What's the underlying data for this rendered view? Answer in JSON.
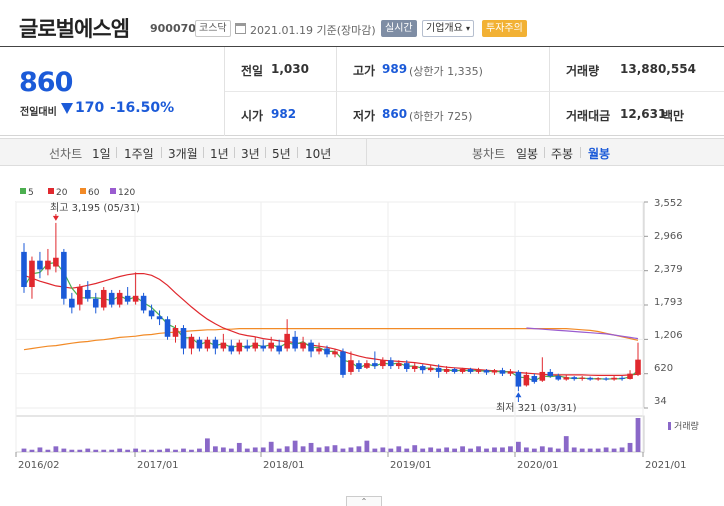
{
  "header": {
    "company_name": "글로벌에스엠",
    "code": "900070",
    "market": "코스닥",
    "as_of": "2021.01.19 기준(장마감)",
    "realtime_label": "실시간",
    "info_label": "기업개요",
    "warning_label": "투자주의",
    "calendar_icon": "calendar-icon",
    "dropdown_icon": "chevron-down-icon"
  },
  "quote": {
    "price": "860",
    "change_label": "전일대비",
    "change_amount": "170",
    "change_pct": "-16.50%",
    "direction_icon": "down-triangle-icon",
    "prev_close_label": "전일",
    "prev_close": "1,030",
    "high_label": "고가",
    "high": "989",
    "upper_limit": "(상한가 1,335)",
    "volume_label": "거래량",
    "volume": "13,880,554",
    "open_label": "시가",
    "open": "982",
    "low_label": "저가",
    "low": "860",
    "lower_limit": "(하한가 725)",
    "amount_label": "거래대금",
    "amount": "12,631",
    "amount_unit": "백만"
  },
  "tabs": {
    "line_label": "선차트",
    "periods": [
      "1일",
      "1주일",
      "3개월",
      "1년",
      "3년",
      "5년",
      "10년"
    ],
    "candle_label": "봉차트",
    "candle_periods": [
      "일봉",
      "주봉",
      "월봉"
    ],
    "active_candle": "월봉"
  },
  "colors": {
    "up": "#e0282e",
    "down": "#1b5ad8",
    "ma5": "#4caf50",
    "ma20": "#e0282e",
    "ma60": "#f28a26",
    "ma120": "#9a5cd0",
    "volume": "#8a68c8"
  },
  "chart_data": {
    "type": "candlestick",
    "title": "",
    "legend": [
      {
        "name": "5",
        "color": "#4caf50"
      },
      {
        "name": "20",
        "color": "#e0282e"
      },
      {
        "name": "60",
        "color": "#f28a26"
      },
      {
        "name": "120",
        "color": "#9a5cd0"
      }
    ],
    "y_ticks": [
      "3,552",
      "2,966",
      "2,379",
      "1,793",
      "1,206",
      "620",
      "34"
    ],
    "ylim": [
      34,
      3552
    ],
    "x_ticks": [
      "2016/02",
      "2017/01",
      "2018/01",
      "2019/01",
      "2020/01",
      "2021/01"
    ],
    "volume_label": "거래량",
    "annotations": {
      "high": "최고 3,195 (05/31)",
      "low": "최저 321 (03/31)"
    },
    "candles": [
      {
        "o": 2700,
        "c": 2100,
        "h": 2850,
        "l": 2000
      },
      {
        "o": 2100,
        "c": 2550,
        "h": 2620,
        "l": 1900
      },
      {
        "o": 2550,
        "c": 2400,
        "h": 2700,
        "l": 2250
      },
      {
        "o": 2400,
        "c": 2550,
        "h": 2750,
        "l": 2300
      },
      {
        "o": 2450,
        "c": 2600,
        "h": 3195,
        "l": 2350
      },
      {
        "o": 2700,
        "c": 1900,
        "h": 2750,
        "l": 1800
      },
      {
        "o": 1900,
        "c": 1750,
        "h": 2000,
        "l": 1650
      },
      {
        "o": 1800,
        "c": 2100,
        "h": 2150,
        "l": 1700
      },
      {
        "o": 2050,
        "c": 1900,
        "h": 2200,
        "l": 1850
      },
      {
        "o": 1900,
        "c": 1750,
        "h": 2000,
        "l": 1650
      },
      {
        "o": 1750,
        "c": 2050,
        "h": 2100,
        "l": 1700
      },
      {
        "o": 2000,
        "c": 1800,
        "h": 2050,
        "l": 1750
      },
      {
        "o": 1800,
        "c": 2000,
        "h": 2050,
        "l": 1750
      },
      {
        "o": 1950,
        "c": 1850,
        "h": 2100,
        "l": 1800
      },
      {
        "o": 1850,
        "c": 1950,
        "h": 2350,
        "l": 1800
      },
      {
        "o": 1950,
        "c": 1700,
        "h": 2000,
        "l": 1650
      },
      {
        "o": 1700,
        "c": 1600,
        "h": 1800,
        "l": 1550
      },
      {
        "o": 1600,
        "c": 1550,
        "h": 1700,
        "l": 1450
      },
      {
        "o": 1550,
        "c": 1250,
        "h": 1600,
        "l": 1200
      },
      {
        "o": 1250,
        "c": 1400,
        "h": 1450,
        "l": 1150
      },
      {
        "o": 1400,
        "c": 1050,
        "h": 1450,
        "l": 950
      },
      {
        "o": 1050,
        "c": 1250,
        "h": 1300,
        "l": 950
      },
      {
        "o": 1200,
        "c": 1050,
        "h": 1250,
        "l": 1000
      },
      {
        "o": 1050,
        "c": 1200,
        "h": 1250,
        "l": 1000
      },
      {
        "o": 1200,
        "c": 1050,
        "h": 1250,
        "l": 950
      },
      {
        "o": 1050,
        "c": 1150,
        "h": 1300,
        "l": 1000
      },
      {
        "o": 1100,
        "c": 1000,
        "h": 1200,
        "l": 950
      },
      {
        "o": 1000,
        "c": 1150,
        "h": 1200,
        "l": 950
      },
      {
        "o": 1100,
        "c": 1050,
        "h": 1200,
        "l": 1000
      },
      {
        "o": 1050,
        "c": 1150,
        "h": 1250,
        "l": 1000
      },
      {
        "o": 1100,
        "c": 1050,
        "h": 1200,
        "l": 1000
      },
      {
        "o": 1050,
        "c": 1150,
        "h": 1250,
        "l": 1000
      },
      {
        "o": 1100,
        "c": 1000,
        "h": 1200,
        "l": 950
      },
      {
        "o": 1050,
        "c": 1300,
        "h": 1550,
        "l": 1000
      },
      {
        "o": 1250,
        "c": 1050,
        "h": 1350,
        "l": 1000
      },
      {
        "o": 1050,
        "c": 1150,
        "h": 1250,
        "l": 1000
      },
      {
        "o": 1150,
        "c": 1000,
        "h": 1200,
        "l": 900
      },
      {
        "o": 1000,
        "c": 1050,
        "h": 1150,
        "l": 950
      },
      {
        "o": 1050,
        "c": 950,
        "h": 1100,
        "l": 900
      },
      {
        "o": 950,
        "c": 1000,
        "h": 1050,
        "l": 900
      },
      {
        "o": 1000,
        "c": 600,
        "h": 1050,
        "l": 550
      },
      {
        "o": 650,
        "c": 850,
        "h": 1000,
        "l": 600
      },
      {
        "o": 800,
        "c": 700,
        "h": 850,
        "l": 650
      },
      {
        "o": 720,
        "c": 800,
        "h": 850,
        "l": 700
      },
      {
        "o": 800,
        "c": 750,
        "h": 1000,
        "l": 700
      },
      {
        "o": 750,
        "c": 850,
        "h": 900,
        "l": 700
      },
      {
        "o": 850,
        "c": 750,
        "h": 900,
        "l": 700
      },
      {
        "o": 750,
        "c": 800,
        "h": 850,
        "l": 700
      },
      {
        "o": 800,
        "c": 700,
        "h": 850,
        "l": 650
      },
      {
        "o": 700,
        "c": 750,
        "h": 800,
        "l": 650
      },
      {
        "o": 750,
        "c": 680,
        "h": 780,
        "l": 620
      },
      {
        "o": 680,
        "c": 720,
        "h": 760,
        "l": 650
      },
      {
        "o": 720,
        "c": 650,
        "h": 780,
        "l": 550
      },
      {
        "o": 650,
        "c": 700,
        "h": 750,
        "l": 620
      },
      {
        "o": 700,
        "c": 650,
        "h": 720,
        "l": 620
      },
      {
        "o": 650,
        "c": 700,
        "h": 720,
        "l": 620
      },
      {
        "o": 700,
        "c": 650,
        "h": 720,
        "l": 620
      },
      {
        "o": 650,
        "c": 680,
        "h": 720,
        "l": 620
      },
      {
        "o": 680,
        "c": 640,
        "h": 700,
        "l": 600
      },
      {
        "o": 640,
        "c": 680,
        "h": 700,
        "l": 600
      },
      {
        "o": 680,
        "c": 620,
        "h": 720,
        "l": 580
      },
      {
        "o": 620,
        "c": 660,
        "h": 700,
        "l": 580
      },
      {
        "o": 650,
        "c": 400,
        "h": 680,
        "l": 321
      },
      {
        "o": 420,
        "c": 600,
        "h": 650,
        "l": 400
      },
      {
        "o": 580,
        "c": 480,
        "h": 620,
        "l": 450
      },
      {
        "o": 500,
        "c": 650,
        "h": 900,
        "l": 480
      },
      {
        "o": 650,
        "c": 580,
        "h": 700,
        "l": 550
      },
      {
        "o": 580,
        "c": 520,
        "h": 620,
        "l": 500
      },
      {
        "o": 520,
        "c": 560,
        "h": 600,
        "l": 500
      },
      {
        "o": 560,
        "c": 530,
        "h": 580,
        "l": 500
      },
      {
        "o": 530,
        "c": 550,
        "h": 580,
        "l": 500
      },
      {
        "o": 550,
        "c": 520,
        "h": 570,
        "l": 500
      },
      {
        "o": 520,
        "c": 540,
        "h": 560,
        "l": 500
      },
      {
        "o": 540,
        "c": 520,
        "h": 560,
        "l": 500
      },
      {
        "o": 520,
        "c": 550,
        "h": 580,
        "l": 500
      },
      {
        "o": 550,
        "c": 530,
        "h": 580,
        "l": 500
      },
      {
        "o": 530,
        "c": 620,
        "h": 680,
        "l": 520
      },
      {
        "o": 600,
        "c": 860,
        "h": 1150,
        "l": 580
      }
    ],
    "ma20": [
      2300,
      2250,
      2200,
      2160,
      2120,
      2100,
      2080,
      2100,
      2130,
      2160,
      2200,
      2240,
      2280,
      2310,
      2330,
      2330,
      2300,
      2230,
      2130,
      2000,
      1880,
      1760,
      1650,
      1550,
      1470,
      1400,
      1350,
      1300,
      1270,
      1250,
      1220,
      1200,
      1180,
      1170,
      1150,
      1130,
      1110,
      1090,
      1070,
      1040,
      1000,
      960,
      920,
      890,
      870,
      850,
      840,
      830,
      820,
      810,
      790,
      770,
      750,
      730,
      720,
      710,
      700,
      690,
      680,
      670,
      660,
      650,
      640,
      630,
      620,
      610,
      600,
      600,
      600,
      600,
      600,
      595,
      590,
      590,
      590,
      590,
      600,
      610
    ],
    "ma60": [
      1030,
      1050,
      1070,
      1090,
      1100,
      1120,
      1140,
      1160,
      1170,
      1190,
      1200,
      1220,
      1240,
      1250,
      1260,
      1280,
      1290,
      1310,
      1320,
      1330,
      1340,
      1350,
      1360,
      1370,
      1370,
      1380,
      1380,
      1390,
      1390,
      1390,
      1390,
      1390,
      1390,
      1390,
      1390,
      1390,
      1390,
      1390,
      1390,
      1390,
      1390,
      1390,
      1390,
      1390,
      1390,
      1390,
      1390,
      1390,
      1390,
      1390,
      1390,
      1390,
      1390,
      1390,
      1390,
      1390,
      1390,
      1390,
      1390,
      1390,
      1390,
      1390,
      1390,
      1390,
      1390,
      1390,
      1390,
      1390,
      1390,
      1380,
      1370,
      1360,
      1340,
      1310,
      1280,
      1250,
      1220,
      1190
    ],
    "ma120_start": 63,
    "ma120": [
      1400,
      1390,
      1380,
      1370,
      1360,
      1350,
      1340,
      1330,
      1320,
      1310,
      1300,
      1280,
      1260,
      1240,
      1220
    ]
  },
  "volume": [
    3,
    2,
    4,
    2,
    5,
    3,
    2,
    2,
    3,
    2,
    2,
    2,
    3,
    2,
    3,
    2,
    2,
    2,
    3,
    2,
    3,
    2,
    3,
    12,
    5,
    4,
    3,
    8,
    3,
    4,
    4,
    9,
    3,
    5,
    10,
    5,
    8,
    4,
    5,
    6,
    3,
    4,
    5,
    10,
    3,
    4,
    3,
    5,
    3,
    6,
    3,
    4,
    3,
    4,
    3,
    5,
    3,
    5,
    3,
    4,
    4,
    5,
    9,
    4,
    3,
    5,
    4,
    3,
    14,
    4,
    3,
    3,
    3,
    4,
    3,
    4,
    8,
    30
  ]
}
